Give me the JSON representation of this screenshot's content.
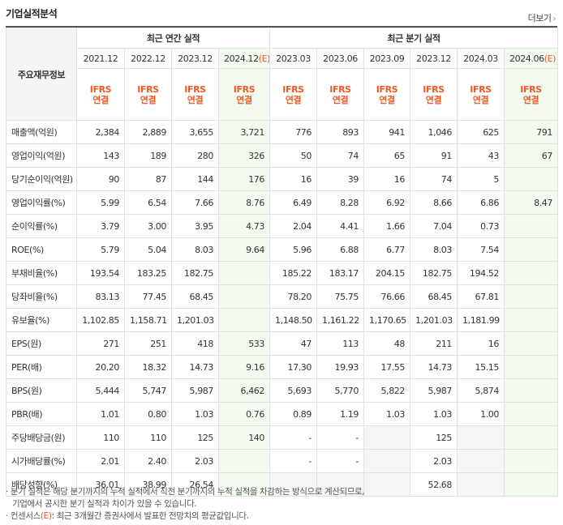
{
  "header": {
    "title": "기업실적분석",
    "more_label": "더보기"
  },
  "table": {
    "side_header": "주요재무정보",
    "group_headers": [
      "최근 연간 실적",
      "최근 분기 실적"
    ],
    "annual_periods": [
      "2021.12",
      "2022.12",
      "2023.12",
      "2024.12"
    ],
    "annual_estimate_suffix": "(E)",
    "quarter_periods": [
      "2023.03",
      "2023.06",
      "2023.09",
      "2023.12",
      "2024.03",
      "2024.06"
    ],
    "quarter_estimate_suffix": "(E)",
    "standard_top": "IFRS",
    "standard_bottom": "연결",
    "rows": [
      {
        "label": "매출액(억원)",
        "values": [
          "2,384",
          "2,889",
          "3,655",
          "3,721",
          "776",
          "893",
          "941",
          "1,046",
          "625",
          "791"
        ]
      },
      {
        "label": "영업이익(억원)",
        "values": [
          "143",
          "189",
          "280",
          "326",
          "50",
          "74",
          "65",
          "91",
          "43",
          "67"
        ]
      },
      {
        "label": "당기순이익(억원)",
        "values": [
          "90",
          "87",
          "144",
          "176",
          "16",
          "39",
          "16",
          "74",
          "5",
          ""
        ]
      },
      {
        "label": "영업이익률(%)",
        "values": [
          "5.99",
          "6.54",
          "7.66",
          "8.76",
          "6.49",
          "8.28",
          "6.92",
          "8.66",
          "6.86",
          "8.47"
        ]
      },
      {
        "label": "순이익률(%)",
        "values": [
          "3.79",
          "3.00",
          "3.95",
          "4.73",
          "2.04",
          "4.41",
          "1.66",
          "7.04",
          "0.73",
          ""
        ]
      },
      {
        "label": "ROE(%)",
        "values": [
          "5.79",
          "5.04",
          "8.03",
          "9.64",
          "5.96",
          "6.88",
          "6.77",
          "8.03",
          "7.54",
          ""
        ]
      },
      {
        "label": "부채비율(%)",
        "values": [
          "193.54",
          "183.25",
          "182.75",
          "",
          "185.22",
          "183.17",
          "204.15",
          "182.75",
          "194.52",
          ""
        ]
      },
      {
        "label": "당좌비율(%)",
        "values": [
          "83.13",
          "77.45",
          "68.45",
          "",
          "78.20",
          "75.75",
          "76.66",
          "68.45",
          "67.81",
          ""
        ]
      },
      {
        "label": "유보율(%)",
        "values": [
          "1,102.85",
          "1,158.71",
          "1,201.03",
          "",
          "1,148.50",
          "1,161.22",
          "1,170.65",
          "1,201.03",
          "1,181.99",
          ""
        ]
      },
      {
        "label": "EPS(원)",
        "values": [
          "271",
          "251",
          "418",
          "533",
          "47",
          "113",
          "48",
          "211",
          "16",
          ""
        ]
      },
      {
        "label": "PER(배)",
        "values": [
          "20.20",
          "18.32",
          "14.73",
          "9.16",
          "17.30",
          "19.93",
          "17.55",
          "14.73",
          "15.15",
          ""
        ]
      },
      {
        "label": "BPS(원)",
        "values": [
          "5,444",
          "5,747",
          "5,987",
          "6,462",
          "5,693",
          "5,770",
          "5,822",
          "5,987",
          "5,874",
          ""
        ]
      },
      {
        "label": "PBR(배)",
        "values": [
          "1.01",
          "0.80",
          "1.03",
          "0.76",
          "0.89",
          "1.19",
          "1.03",
          "1.03",
          "1.00",
          ""
        ]
      },
      {
        "label": "주당배당금(원)",
        "values": [
          "110",
          "110",
          "125",
          "140",
          "-",
          "-",
          "",
          "125",
          "",
          ""
        ]
      },
      {
        "label": "시가배당률(%)",
        "values": [
          "2.01",
          "2.40",
          "2.03",
          "",
          "-",
          "-",
          "",
          "2.03",
          "",
          ""
        ]
      },
      {
        "label": "배당성향(%)",
        "values": [
          "36.01",
          "38.99",
          "26.54",
          "",
          "",
          "",
          "",
          "52.68",
          "",
          ""
        ]
      }
    ]
  },
  "notes": {
    "line1": "· 분기 실적은 해당 분기까지의 누적 실적에서 직전 분기까지의 누적 실적을 차감하는 방식으로 계산되므로,",
    "line2": "기업에서 공시한 분기 실적과 차이가 있을 수 있습니다.",
    "line3_prefix": "· 컨센서스",
    "line3_est": "(E)",
    "line3_rest": ": 최근 3개월간 증권사에서 발표한 전망치의 평균값입니다."
  }
}
